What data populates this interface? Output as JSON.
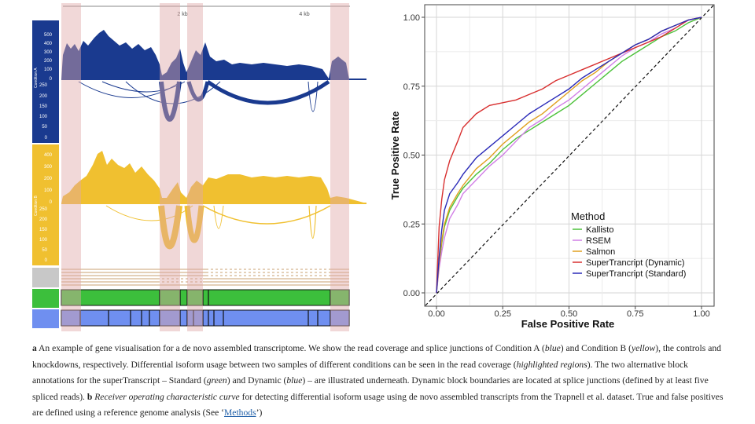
{
  "figure_a": {
    "scale_labels": [
      "2 kb",
      "4 kb"
    ],
    "condition_a_label": "Condition A",
    "condition_b_label": "Condition B",
    "coverage_ticks_a": [
      "500",
      "400",
      "300",
      "200",
      "100",
      "0"
    ],
    "junction_ticks_a": [
      "250",
      "200",
      "150",
      "100",
      "50",
      "0"
    ],
    "coverage_ticks_b": [
      "400",
      "300",
      "200",
      "100",
      "0"
    ],
    "junction_ticks_b": [
      "250",
      "200",
      "150",
      "100",
      "50",
      "0"
    ],
    "colors": {
      "condition_a": "#1a3a8f",
      "condition_b": "#f0c030",
      "highlight": "#e8b4b4",
      "standard_blocks": "#3cbf3c",
      "dynamic_blocks": "#6f8ff0"
    }
  },
  "chart_data": {
    "type": "line",
    "xlabel": "False Positive Rate",
    "ylabel": "True Positive Rate",
    "xlim": [
      0,
      1
    ],
    "ylim": [
      0,
      1
    ],
    "xticks": [
      "0.00",
      "0.25",
      "0.50",
      "0.75",
      "1.00"
    ],
    "yticks": [
      "0.00",
      "0.25",
      "0.50",
      "0.75",
      "1.00"
    ],
    "grid": true,
    "legend_title": "Method",
    "legend_placement": "bottom-right",
    "series": [
      {
        "name": "Kallisto",
        "color": "#4cc13a",
        "x": [
          0,
          0.01,
          0.02,
          0.03,
          0.05,
          0.08,
          0.1,
          0.15,
          0.2,
          0.25,
          0.3,
          0.35,
          0.4,
          0.45,
          0.5,
          0.55,
          0.6,
          0.65,
          0.7,
          0.75,
          0.8,
          0.85,
          0.9,
          0.95,
          1.0
        ],
        "y": [
          0,
          0.1,
          0.18,
          0.24,
          0.3,
          0.35,
          0.38,
          0.43,
          0.47,
          0.52,
          0.56,
          0.59,
          0.62,
          0.65,
          0.68,
          0.72,
          0.76,
          0.8,
          0.84,
          0.87,
          0.9,
          0.93,
          0.95,
          0.98,
          1.0
        ]
      },
      {
        "name": "RSEM",
        "color": "#d17fe6",
        "x": [
          0,
          0.01,
          0.02,
          0.03,
          0.05,
          0.08,
          0.1,
          0.15,
          0.2,
          0.25,
          0.3,
          0.35,
          0.4,
          0.45,
          0.5,
          0.55,
          0.6,
          0.65,
          0.7,
          0.75,
          0.8,
          0.85,
          0.9,
          0.95,
          1.0
        ],
        "y": [
          0,
          0.09,
          0.15,
          0.2,
          0.27,
          0.32,
          0.36,
          0.41,
          0.46,
          0.5,
          0.55,
          0.6,
          0.63,
          0.67,
          0.7,
          0.74,
          0.78,
          0.82,
          0.86,
          0.89,
          0.91,
          0.94,
          0.96,
          0.99,
          1.0
        ]
      },
      {
        "name": "Salmon",
        "color": "#e0a020",
        "x": [
          0,
          0.01,
          0.02,
          0.03,
          0.05,
          0.08,
          0.1,
          0.15,
          0.2,
          0.25,
          0.3,
          0.35,
          0.4,
          0.45,
          0.5,
          0.55,
          0.6,
          0.65,
          0.7,
          0.75,
          0.8,
          0.85,
          0.9,
          0.95,
          1.0
        ],
        "y": [
          0,
          0.11,
          0.19,
          0.25,
          0.31,
          0.36,
          0.39,
          0.45,
          0.49,
          0.54,
          0.58,
          0.62,
          0.65,
          0.69,
          0.73,
          0.77,
          0.8,
          0.84,
          0.87,
          0.9,
          0.92,
          0.95,
          0.97,
          0.99,
          1.0
        ]
      },
      {
        "name": "SuperTrancript (Dynamic)",
        "color": "#d83030",
        "x": [
          0,
          0.01,
          0.02,
          0.03,
          0.05,
          0.08,
          0.1,
          0.15,
          0.2,
          0.25,
          0.3,
          0.35,
          0.4,
          0.45,
          0.5,
          0.55,
          0.6,
          0.65,
          0.7,
          0.75,
          0.8,
          0.85,
          0.9,
          0.95,
          1.0
        ],
        "y": [
          0,
          0.24,
          0.34,
          0.41,
          0.48,
          0.55,
          0.6,
          0.65,
          0.68,
          0.69,
          0.7,
          0.72,
          0.74,
          0.77,
          0.79,
          0.81,
          0.83,
          0.85,
          0.87,
          0.89,
          0.91,
          0.93,
          0.96,
          0.99,
          1.0
        ]
      },
      {
        "name": "SuperTrancript (Standard)",
        "color": "#2a2ab8",
        "x": [
          0,
          0.01,
          0.02,
          0.03,
          0.05,
          0.08,
          0.1,
          0.15,
          0.2,
          0.25,
          0.3,
          0.35,
          0.4,
          0.45,
          0.5,
          0.55,
          0.6,
          0.65,
          0.7,
          0.75,
          0.8,
          0.85,
          0.9,
          0.95,
          1.0
        ],
        "y": [
          0,
          0.13,
          0.23,
          0.3,
          0.36,
          0.4,
          0.43,
          0.49,
          0.53,
          0.57,
          0.61,
          0.65,
          0.68,
          0.71,
          0.74,
          0.78,
          0.81,
          0.84,
          0.87,
          0.9,
          0.92,
          0.95,
          0.97,
          0.99,
          1.0
        ]
      }
    ]
  },
  "caption": {
    "a_label": "a",
    "a_text": " An example of gene visualisation for a de novo assembled transcriptome. We show the read coverage and splice junctions of Condition A (",
    "a_blue": "blue",
    "a_text2": ") and Condition B (",
    "a_yellow": "yellow",
    "a_text3": "), the controls and knockdowns, respectively. Differential isoform usage between two samples of different conditions can be seen in the read coverage (",
    "a_highlighted": "highlighted regions",
    "a_text4": "). The two alternative block annotations for the superTranscript – Standard (",
    "a_green": "green",
    "a_text5": ") and Dynamic (",
    "a_blue2": "blue",
    "a_text6": ") – are illustrated underneath. Dynamic block boundaries are located at splice junctions (defined by at least five spliced reads). ",
    "b_label": "b",
    "b_italic": "Receiver operating characteristic curve",
    "b_text": " for detecting differential isoform usage using de novo assembled transcripts from the Trapnell et al. dataset. True and false positives are defined using a reference genome analysis (See ‘",
    "b_link": "Methods",
    "b_text2": "’)"
  }
}
